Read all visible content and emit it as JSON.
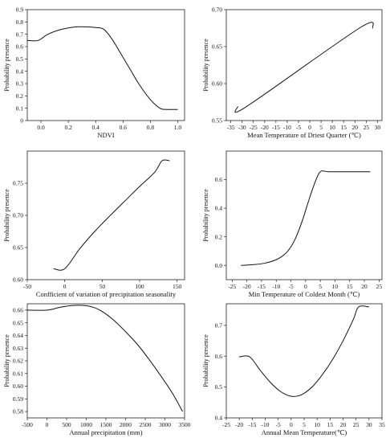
{
  "chart_data": [
    {
      "type": "line",
      "xlabel": "NDVI",
      "ylabel": "Probability presence",
      "xlim": [
        -0.1,
        1.05
      ],
      "ylim": [
        0,
        0.9
      ],
      "xticks": [
        0.0,
        0.2,
        0.4,
        0.6,
        0.8,
        1.0
      ],
      "xtick_labels": [
        "0.0",
        "0.2",
        "0.4",
        "0.6",
        "0.8",
        "1.0"
      ],
      "yticks": [
        0,
        0.1,
        0.2,
        0.3,
        0.4,
        0.5,
        0.6,
        0.7,
        0.8,
        0.9
      ],
      "ytick_labels": [
        "0",
        "0.1",
        "0.2",
        "0.3",
        "0.4",
        "0.5",
        "0.6",
        "0.7",
        "0.8",
        "0.9"
      ],
      "x": [
        -0.1,
        -0.02,
        0.05,
        0.15,
        0.25,
        0.33,
        0.4,
        0.46,
        0.52,
        0.58,
        0.65,
        0.72,
        0.8,
        0.87,
        0.92,
        1.0
      ],
      "y": [
        0.65,
        0.65,
        0.7,
        0.74,
        0.76,
        0.76,
        0.755,
        0.74,
        0.66,
        0.55,
        0.42,
        0.29,
        0.17,
        0.1,
        0.09,
        0.09
      ],
      "color": "#111111"
    },
    {
      "type": "line",
      "xlabel": "Mean Temperature of Driest Quarter (℃)",
      "ylabel": "Probability presence",
      "xlim": [
        -37,
        32
      ],
      "ylim": [
        0.55,
        0.7
      ],
      "xticks": [
        -35,
        -30,
        -25,
        -20,
        -15,
        -10,
        -5,
        0,
        5,
        10,
        15,
        20,
        25,
        30
      ],
      "xtick_labels": [
        "-35",
        "-30",
        "-25",
        "-20",
        "-15",
        "-10",
        "-5",
        "0",
        "5",
        "10",
        "15",
        "20",
        "25",
        "30"
      ],
      "yticks": [
        0.55,
        0.6,
        0.65,
        0.7
      ],
      "ytick_labels": [
        "0.55",
        "0.60",
        "0.65",
        "0.70"
      ],
      "x": [
        -32,
        -28,
        22,
        28
      ],
      "y": [
        0.569,
        0.569,
        0.675,
        0.675
      ],
      "color": "#111111"
    },
    {
      "type": "line",
      "xlabel": "Confficient of variation of precipitation seasonality",
      "ylabel": "Probability presence",
      "xlim": [
        -50,
        160
      ],
      "ylim": [
        0.6,
        0.8
      ],
      "xticks": [
        -50,
        0,
        50,
        100,
        150
      ],
      "xtick_labels": [
        "-50",
        "0",
        "50",
        "100",
        "150"
      ],
      "yticks": [
        0.6,
        0.65,
        0.7,
        0.75
      ],
      "ytick_labels": [
        "0.60",
        "0.65",
        "0.70",
        "0.75"
      ],
      "x": [
        -15,
        0,
        20,
        40,
        60,
        80,
        100,
        120,
        130,
        140
      ],
      "y": [
        0.617,
        0.617,
        0.648,
        0.675,
        0.699,
        0.722,
        0.745,
        0.767,
        0.785,
        0.785
      ],
      "color": "#111111"
    },
    {
      "type": "line",
      "xlabel": "Min Temperature of Coldest Month (℃)",
      "ylabel": "Probability presence",
      "xlim": [
        -27,
        26
      ],
      "ylim": [
        -0.1,
        0.8
      ],
      "xticks": [
        -25,
        -20,
        -15,
        -10,
        -5,
        0,
        5,
        10,
        15,
        20,
        25
      ],
      "xtick_labels": [
        "-25",
        "-20",
        "-15",
        "-10",
        "-5",
        "0",
        "5",
        "10",
        "15",
        "20",
        "25"
      ],
      "yticks": [
        0.0,
        0.2,
        0.4,
        0.6
      ],
      "ytick_labels": [
        "0.0",
        "0.2",
        "0.4",
        "0.6"
      ],
      "x": [
        -22,
        -18,
        -14,
        -10,
        -7,
        -5,
        -3,
        -1,
        1,
        3,
        5,
        8,
        15,
        22
      ],
      "y": [
        0.0,
        0.005,
        0.015,
        0.04,
        0.08,
        0.13,
        0.21,
        0.32,
        0.45,
        0.57,
        0.655,
        0.655,
        0.655,
        0.655
      ],
      "color": "#111111"
    },
    {
      "type": "line",
      "xlabel": "Annual precipitation (mm)",
      "ylabel": "Probability presence",
      "xlim": [
        -500,
        3500
      ],
      "ylim": [
        0.575,
        0.665
      ],
      "xticks": [
        -500,
        0,
        500,
        1000,
        1500,
        2000,
        2500,
        3000,
        3500
      ],
      "xtick_labels": [
        "-500",
        "0",
        "500",
        "1000",
        "1500",
        "2000",
        "2500",
        "3000",
        "3500"
      ],
      "yticks": [
        0.58,
        0.59,
        0.6,
        0.61,
        0.62,
        0.63,
        0.64,
        0.65,
        0.66
      ],
      "ytick_labels": [
        "0.58",
        "0.59",
        "0.60",
        "0.61",
        "0.62",
        "0.63",
        "0.64",
        "0.65",
        "0.66"
      ],
      "x": [
        -500,
        0,
        300,
        600,
        900,
        1150,
        1400,
        1700,
        2000,
        2300,
        2600,
        2900,
        3200,
        3450
      ],
      "y": [
        0.66,
        0.66,
        0.662,
        0.6635,
        0.6637,
        0.6625,
        0.659,
        0.652,
        0.643,
        0.633,
        0.621,
        0.608,
        0.594,
        0.58
      ],
      "color": "#111111"
    },
    {
      "type": "line",
      "xlabel": "Annual Mean Temperature(℃)",
      "ylabel": "Probability presence",
      "xlim": [
        -25,
        35
      ],
      "ylim": [
        0.4,
        0.77
      ],
      "xticks": [
        -25,
        -20,
        -15,
        -10,
        -5,
        0,
        5,
        10,
        15,
        20,
        25,
        30,
        35
      ],
      "xtick_labels": [
        "-25",
        "-20",
        "-15",
        "-10",
        "-5",
        "0",
        "5",
        "10",
        "15",
        "20",
        "25",
        "30",
        "35"
      ],
      "yticks": [
        0.4,
        0.5,
        0.6,
        0.7
      ],
      "ytick_labels": [
        "0.4",
        "0.5",
        "0.6",
        "0.7"
      ],
      "x": [
        -20,
        -16,
        -12,
        -8,
        -4,
        0,
        4,
        8,
        12,
        16,
        20,
        24,
        26,
        30
      ],
      "y": [
        0.598,
        0.598,
        0.555,
        0.515,
        0.485,
        0.47,
        0.475,
        0.5,
        0.54,
        0.59,
        0.65,
        0.72,
        0.76,
        0.76
      ],
      "color": "#111111"
    }
  ]
}
